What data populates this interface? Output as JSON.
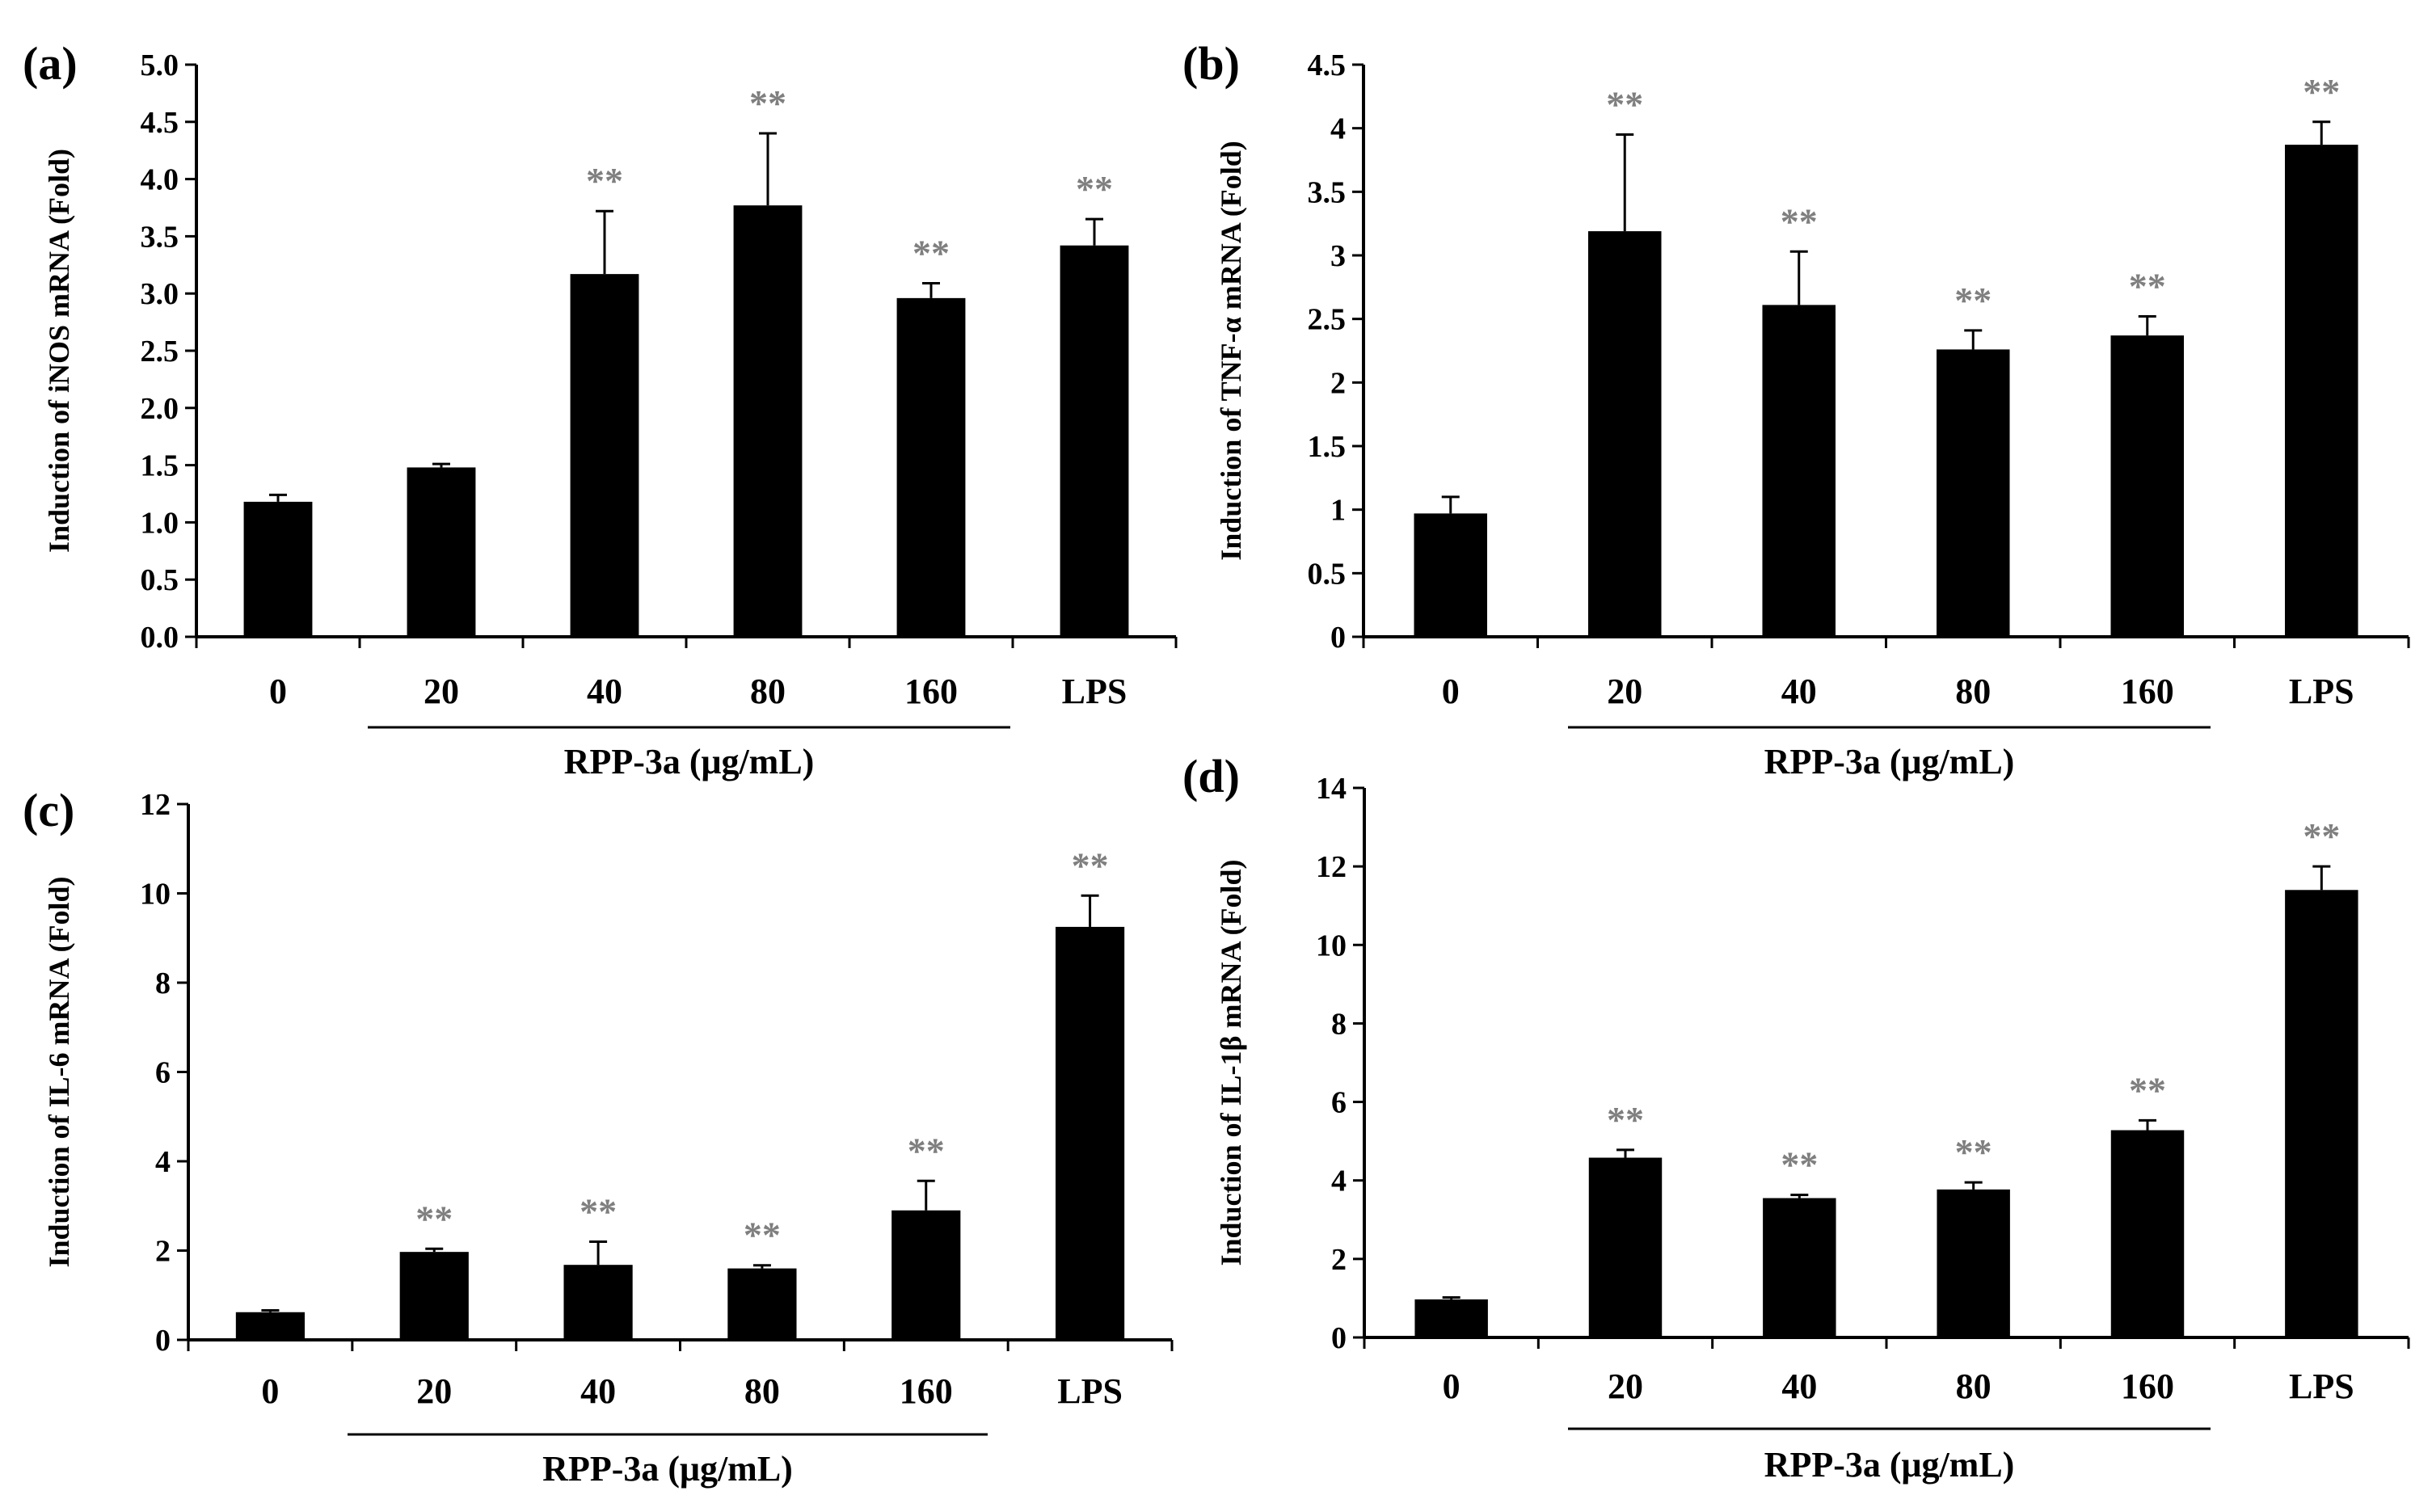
{
  "figure": {
    "bar_color": "#000000",
    "star_color": "#7f7f7f",
    "axis_color": "#000000"
  },
  "chart_data": [
    {
      "panel_label": "(a)",
      "type": "bar",
      "categories": [
        "0",
        "20",
        "40",
        "80",
        "160",
        "LPS"
      ],
      "values": [
        1.18,
        1.48,
        3.17,
        3.77,
        2.96,
        3.42
      ],
      "errors": [
        0.06,
        0.03,
        0.55,
        0.63,
        0.13,
        0.23
      ],
      "significance": [
        "",
        "",
        "**",
        "**",
        "**",
        "**"
      ],
      "ylabel": "Induction of iNOS mRNA (Fold)",
      "ylim": [
        0,
        5.0
      ],
      "yticks": [
        "0.0",
        "0.5",
        "1.0",
        "1.5",
        "2.0",
        "2.5",
        "3.0",
        "3.5",
        "4.0",
        "4.5",
        "5.0"
      ],
      "group_label": "RPP-3a (μg/mL)",
      "group_span": [
        "20",
        "160"
      ]
    },
    {
      "panel_label": "(b)",
      "type": "bar",
      "categories": [
        "0",
        "20",
        "40",
        "80",
        "160",
        "LPS"
      ],
      "values": [
        0.97,
        3.19,
        2.61,
        2.26,
        2.37,
        3.87
      ],
      "errors": [
        0.13,
        0.76,
        0.42,
        0.15,
        0.15,
        0.18
      ],
      "significance": [
        "",
        "**",
        "**",
        "**",
        "**",
        "**"
      ],
      "ylabel": "Induction of TNF-α mRNA (Fold)",
      "ylim": [
        0,
        4.5
      ],
      "yticks": [
        "0",
        "0.5",
        "1",
        "1.5",
        "2",
        "2.5",
        "3",
        "3.5",
        "4",
        "4.5"
      ],
      "group_label": "RPP-3a (μg/mL)",
      "group_span": [
        "20",
        "160"
      ]
    },
    {
      "panel_label": "(c)",
      "type": "bar",
      "categories": [
        "0",
        "20",
        "40",
        "80",
        "160",
        "LPS"
      ],
      "values": [
        0.62,
        1.97,
        1.68,
        1.6,
        2.9,
        9.25
      ],
      "errors": [
        0.04,
        0.07,
        0.52,
        0.07,
        0.66,
        0.7
      ],
      "significance": [
        "",
        "**",
        "**",
        "**",
        "**",
        "**"
      ],
      "ylabel": "Induction of IL-6 mRNA (Fold)",
      "ylim": [
        0,
        12
      ],
      "yticks": [
        "0",
        "2",
        "4",
        "6",
        "8",
        "10",
        "12"
      ],
      "group_label": "RPP-3a (μg/mL)",
      "group_span": [
        "20",
        "160"
      ]
    },
    {
      "panel_label": "(d)",
      "type": "bar",
      "categories": [
        "0",
        "20",
        "40",
        "80",
        "160",
        "LPS"
      ],
      "values": [
        0.97,
        4.58,
        3.55,
        3.77,
        5.28,
        11.4
      ],
      "errors": [
        0.05,
        0.2,
        0.08,
        0.18,
        0.25,
        0.6
      ],
      "significance": [
        "",
        "**",
        "**",
        "**",
        "**",
        "**"
      ],
      "ylabel": "Induction of IL-1β mRNA (Fold)",
      "ylim": [
        0,
        14
      ],
      "yticks": [
        "0",
        "2",
        "4",
        "6",
        "8",
        "10",
        "12",
        "14"
      ],
      "group_label": "RPP-3a (μg/mL)",
      "group_span": [
        "20",
        "160"
      ]
    }
  ]
}
